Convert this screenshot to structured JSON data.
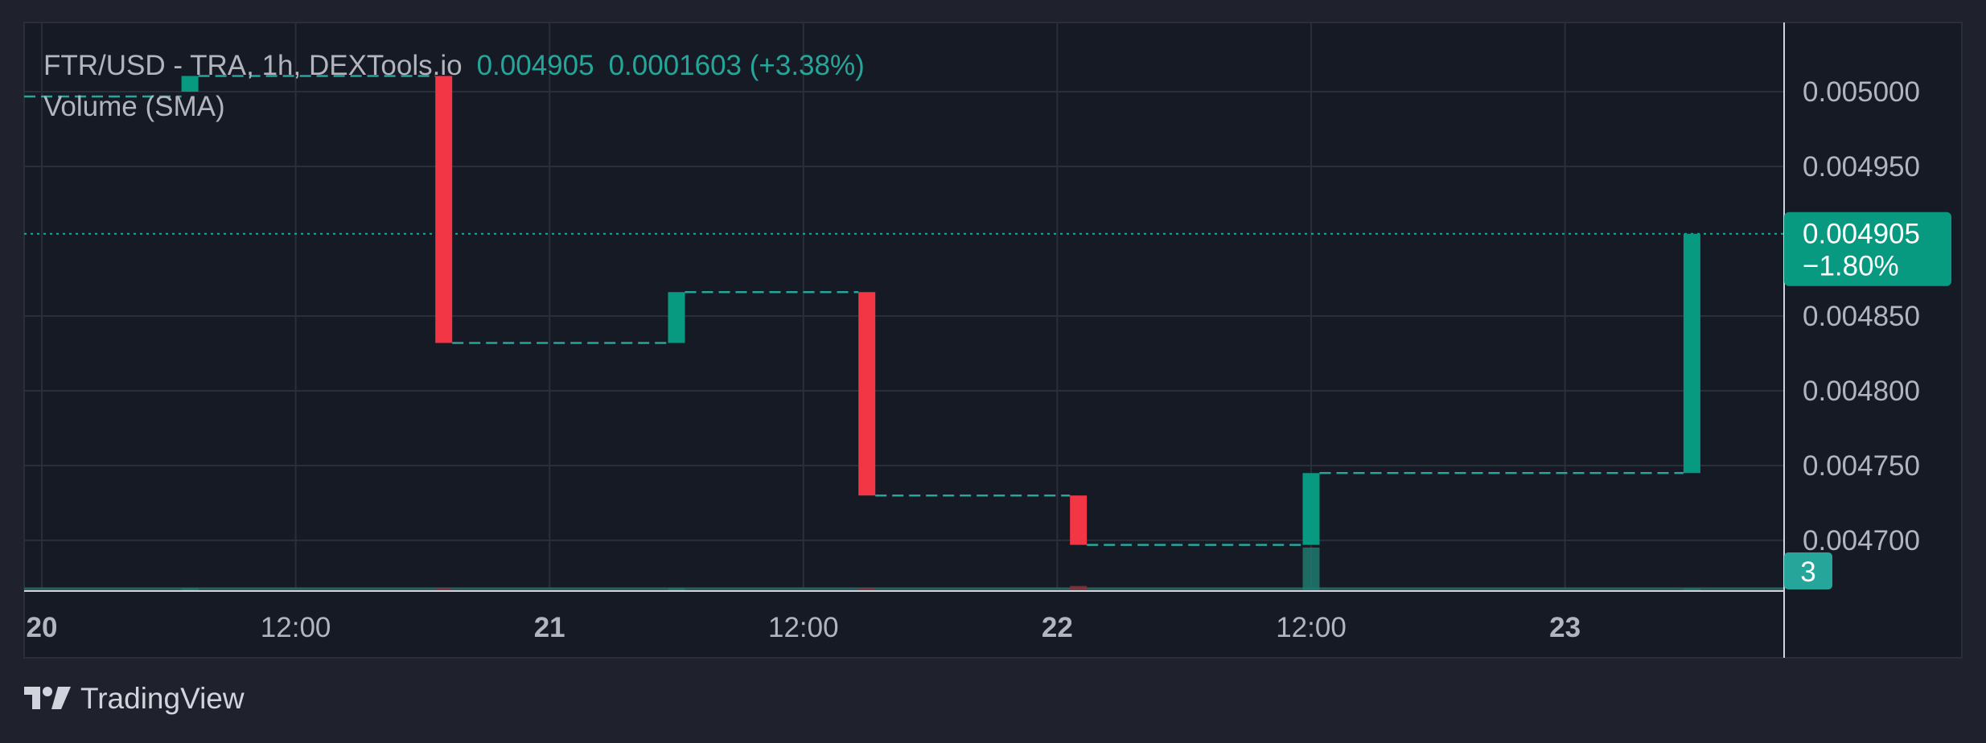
{
  "legend": {
    "title": "FTR/USD - TRA, 1h, DEXTools.io",
    "last_value": "0.004905",
    "change": "0.0001603",
    "change_pct": "(+3.38%)",
    "volume_label": "Volume (SMA)"
  },
  "price_tag": {
    "value": "0.004905",
    "change": "−1.80%"
  },
  "volume_tag": {
    "value": "3"
  },
  "brand": {
    "name": "TradingView",
    "logo": "tradingview-logo-icon"
  },
  "colors": {
    "background": "#161a25",
    "frame": "#1f222d",
    "grid": "#2a2e39",
    "up": "#089981",
    "down": "#f23645",
    "dashed_line": "#26a69a",
    "price_tag_bg": "#089981",
    "volume_tag_bg": "#26a69a"
  },
  "chart_data": {
    "type": "candlestick",
    "y_axis": {
      "ticks": [
        "0.005000",
        "0.004950",
        "0.004850",
        "0.004800",
        "0.004750",
        "0.004700"
      ],
      "tick_values": [
        0.005,
        0.00495,
        0.00485,
        0.0048,
        0.00475,
        0.0047
      ],
      "position": "right"
    },
    "x_axis": {
      "ticks": [
        {
          "label": "20",
          "day": 20,
          "hour": 0,
          "bold": true
        },
        {
          "label": "12:00",
          "day": 20,
          "hour": 12,
          "bold": false
        },
        {
          "label": "21",
          "day": 21,
          "hour": 0,
          "bold": true
        },
        {
          "label": "12:00",
          "day": 21,
          "hour": 12,
          "bold": false
        },
        {
          "label": "22",
          "day": 22,
          "hour": 0,
          "bold": true
        },
        {
          "label": "12:00",
          "day": 22,
          "hour": 12,
          "bold": false
        },
        {
          "label": "23",
          "day": 23,
          "hour": 0,
          "bold": true
        }
      ]
    },
    "last_price": 0.004905,
    "candles": [
      {
        "day": 20,
        "hour": 7,
        "open": 0.005,
        "close": 0.0050105
      },
      {
        "day": 20,
        "hour": 19,
        "open": 0.0050105,
        "close": 0.004832
      },
      {
        "day": 21,
        "hour": 6,
        "open": 0.004832,
        "close": 0.004866
      },
      {
        "day": 21,
        "hour": 15,
        "open": 0.004866,
        "close": 0.00473
      },
      {
        "day": 22,
        "hour": 1,
        "open": 0.00473,
        "close": 0.004697
      },
      {
        "day": 22,
        "hour": 12,
        "open": 0.004697,
        "close": 0.004745
      },
      {
        "day": 23,
        "hour": 6,
        "open": 0.004745,
        "close": 0.004905
      }
    ],
    "volumes": [
      {
        "day": 20,
        "hour": 7,
        "value": 0.2,
        "color": "up"
      },
      {
        "day": 20,
        "hour": 19,
        "value": 0.2,
        "color": "down"
      },
      {
        "day": 21,
        "hour": 6,
        "value": 0.2,
        "color": "up"
      },
      {
        "day": 21,
        "hour": 15,
        "value": 0.2,
        "color": "down"
      },
      {
        "day": 22,
        "hour": 1,
        "value": 0.45,
        "color": "down"
      },
      {
        "day": 22,
        "hour": 12,
        "value": 4.5,
        "color": "up"
      },
      {
        "day": 23,
        "hour": 6,
        "value": 0.15,
        "color": "up"
      }
    ]
  }
}
